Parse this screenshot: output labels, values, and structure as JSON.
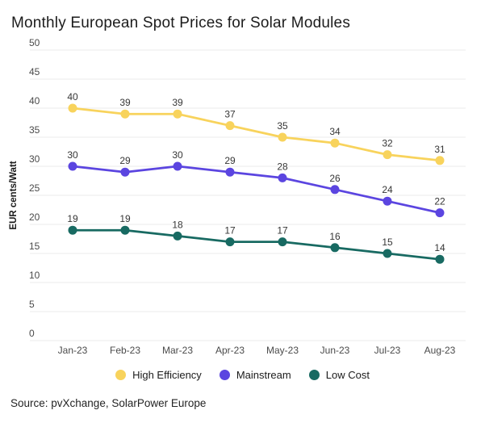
{
  "title": "Monthly European Spot Prices for Solar Modules",
  "source": "Source: pvXchange, SolarPower Europe",
  "chart_data": {
    "type": "line",
    "title": "Monthly European Spot Prices for Solar Modules",
    "xlabel": "",
    "ylabel": "EUR cents/Watt",
    "ylim": [
      0,
      50
    ],
    "ytick_step": 5,
    "grid": true,
    "legend_position": "bottom",
    "categories": [
      "Jan-23",
      "Feb-23",
      "Mar-23",
      "Apr-23",
      "May-23",
      "Jun-23",
      "Jul-23",
      "Aug-23"
    ],
    "series": [
      {
        "name": "High Efficiency",
        "color": "#F8D35C",
        "values": [
          40,
          39,
          39,
          37,
          35,
          34,
          32,
          31
        ]
      },
      {
        "name": "Mainstream",
        "color": "#5B45E0",
        "values": [
          30,
          29,
          30,
          29,
          28,
          26,
          24,
          22
        ]
      },
      {
        "name": "Low Cost",
        "color": "#186A62",
        "values": [
          19,
          19,
          18,
          17,
          17,
          16,
          15,
          14
        ]
      }
    ],
    "gridline_color": "#ebebeb"
  }
}
